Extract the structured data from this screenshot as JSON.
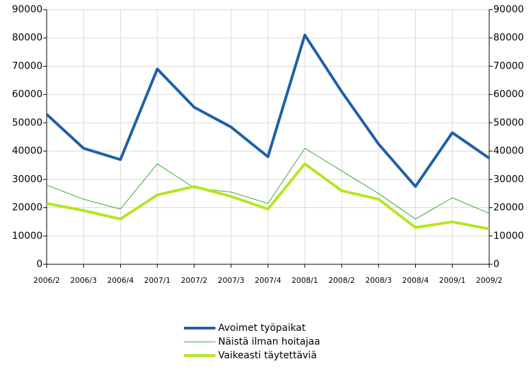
{
  "chart_data": {
    "type": "line",
    "categories": [
      "2006/2",
      "2006/3",
      "2006/4",
      "2007/1",
      "2007/2",
      "2007/3",
      "2007/4",
      "2008/1",
      "2008/2",
      "2008/3",
      "2008/4",
      "2009/1",
      "2009/2"
    ],
    "series": [
      {
        "name": "Avoimet työpaikat",
        "color": "#1f5fa8",
        "values": [
          53000,
          41000,
          37000,
          69000,
          55500,
          48500,
          38000,
          81000,
          61000,
          42500,
          27500,
          46500,
          37500
        ]
      },
      {
        "name": "Näistä ilman hoitajaa",
        "color": "#33aa33",
        "values": [
          28000,
          23000,
          19500,
          35500,
          27000,
          25500,
          21500,
          41000,
          33000,
          25000,
          16000,
          23500,
          18000
        ]
      },
      {
        "name": "Vaikeasti täytettäviä",
        "color": "#b5e61d",
        "values": [
          21500,
          19000,
          16000,
          24500,
          27500,
          24000,
          19500,
          35500,
          26000,
          23000,
          13000,
          15000,
          12500
        ]
      }
    ],
    "ylim": [
      0,
      90000
    ],
    "yticks": [
      0,
      10000,
      20000,
      30000,
      40000,
      50000,
      60000,
      70000,
      80000,
      90000
    ],
    "grid": true
  }
}
